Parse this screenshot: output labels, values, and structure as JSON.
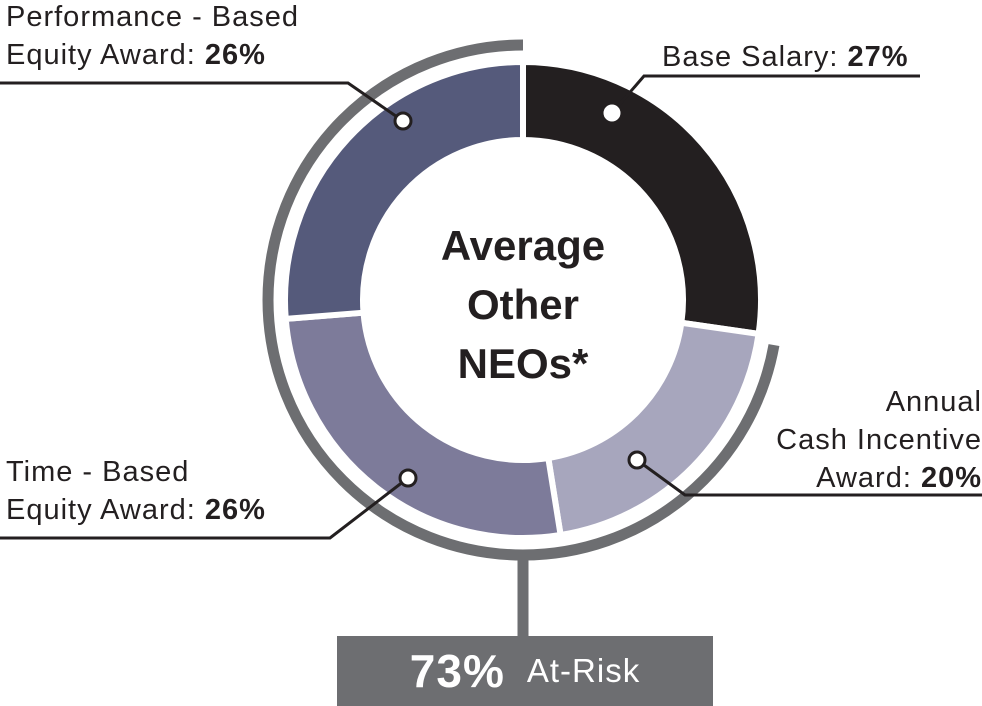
{
  "chart_data": {
    "type": "pie",
    "title": "Average Other NEOs*",
    "slices": [
      {
        "name": "Base Salary",
        "value": 27,
        "label_prefix": "Base Salary: ",
        "label_value": "27%",
        "color": "#231f20"
      },
      {
        "name": "Annual Cash Incentive Award",
        "value": 20,
        "label_lines": [
          "Annual",
          "Cash Incentive"
        ],
        "label_prefix": "Award: ",
        "label_value": "20%",
        "color": "#a7a6bd"
      },
      {
        "name": "Time - Based Equity Award",
        "value": 26,
        "label_line1": "Time - Based",
        "label_prefix": "Equity Award: ",
        "label_value": "26%",
        "color": "#7d7b9a"
      },
      {
        "name": "Performance - Based Equity Award",
        "value": 26,
        "label_line1": "Performance - Based",
        "label_prefix": "Equity Award: ",
        "label_value": "26%",
        "color": "#555a7b"
      }
    ],
    "at_risk": {
      "percent": "73%",
      "label": "At-Risk"
    },
    "colors": {
      "bracket": "#6d6e71",
      "leader": "#231f20"
    }
  },
  "center": {
    "line1": "Average",
    "line2": "Other",
    "line3": "NEOs*"
  }
}
